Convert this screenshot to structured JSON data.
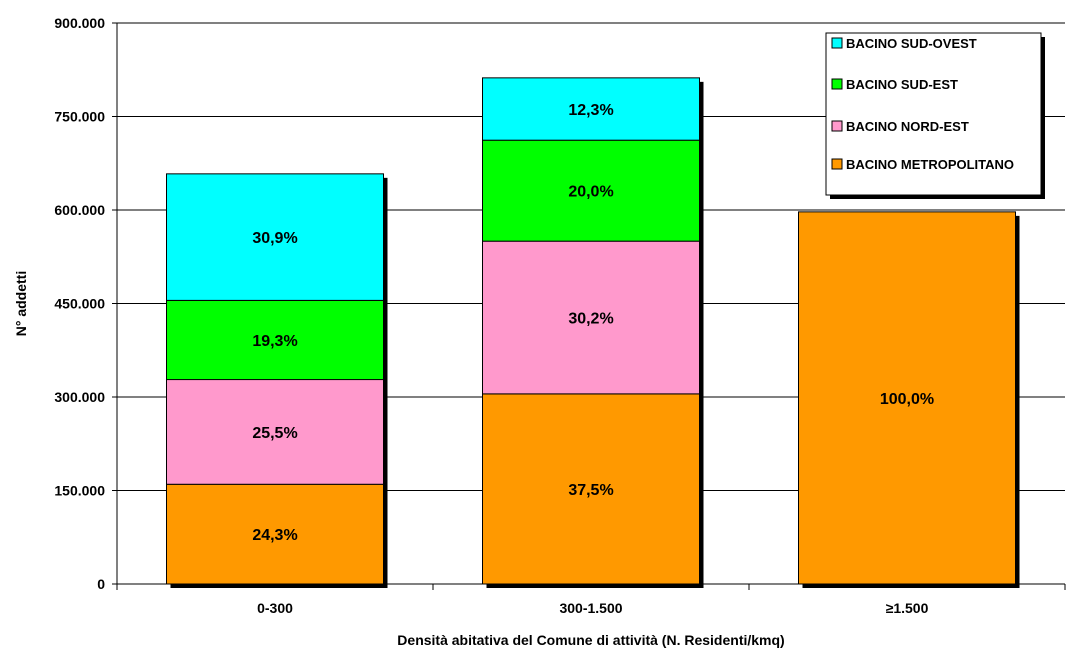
{
  "chart_data": {
    "type": "bar",
    "stacked": true,
    "title": "",
    "xlabel": "Densità abitativa del Comune di attività (N. Residenti/kmq)",
    "ylabel": "N° addetti",
    "ylim": [
      0,
      900000
    ],
    "yticks": [
      0,
      150000,
      300000,
      450000,
      600000,
      750000,
      900000
    ],
    "ytick_labels": [
      "0",
      "150.000",
      "300.000",
      "450.000",
      "600.000",
      "750.000",
      "900.000"
    ],
    "categories": [
      "0-300",
      "300-1.500",
      "≥1.500"
    ],
    "grid": true,
    "legend_position": "top-right",
    "series": [
      {
        "name": "BACINO METROPOLITANO",
        "color": "#FF9900",
        "values": [
          160000,
          305000,
          597000
        ],
        "labels": [
          "24,3%",
          "37,5%",
          "100,0%"
        ]
      },
      {
        "name": "BACINO NORD-EST",
        "color": "#FF99CC",
        "values": [
          168000,
          245000,
          0
        ],
        "labels": [
          "25,5%",
          "30,2%",
          ""
        ]
      },
      {
        "name": "BACINO SUD-EST",
        "color": "#00FF00",
        "values": [
          127000,
          162000,
          0
        ],
        "labels": [
          "19,3%",
          "20,0%",
          ""
        ]
      },
      {
        "name": "BACINO SUD-OVEST",
        "color": "#00FFFF",
        "values": [
          203000,
          100000,
          0
        ],
        "labels": [
          "30,9%",
          "12,3%",
          ""
        ]
      }
    ],
    "legend_order": [
      "BACINO SUD-OVEST",
      "BACINO SUD-EST",
      "BACINO NORD-EST",
      "BACINO METROPOLITANO"
    ]
  }
}
